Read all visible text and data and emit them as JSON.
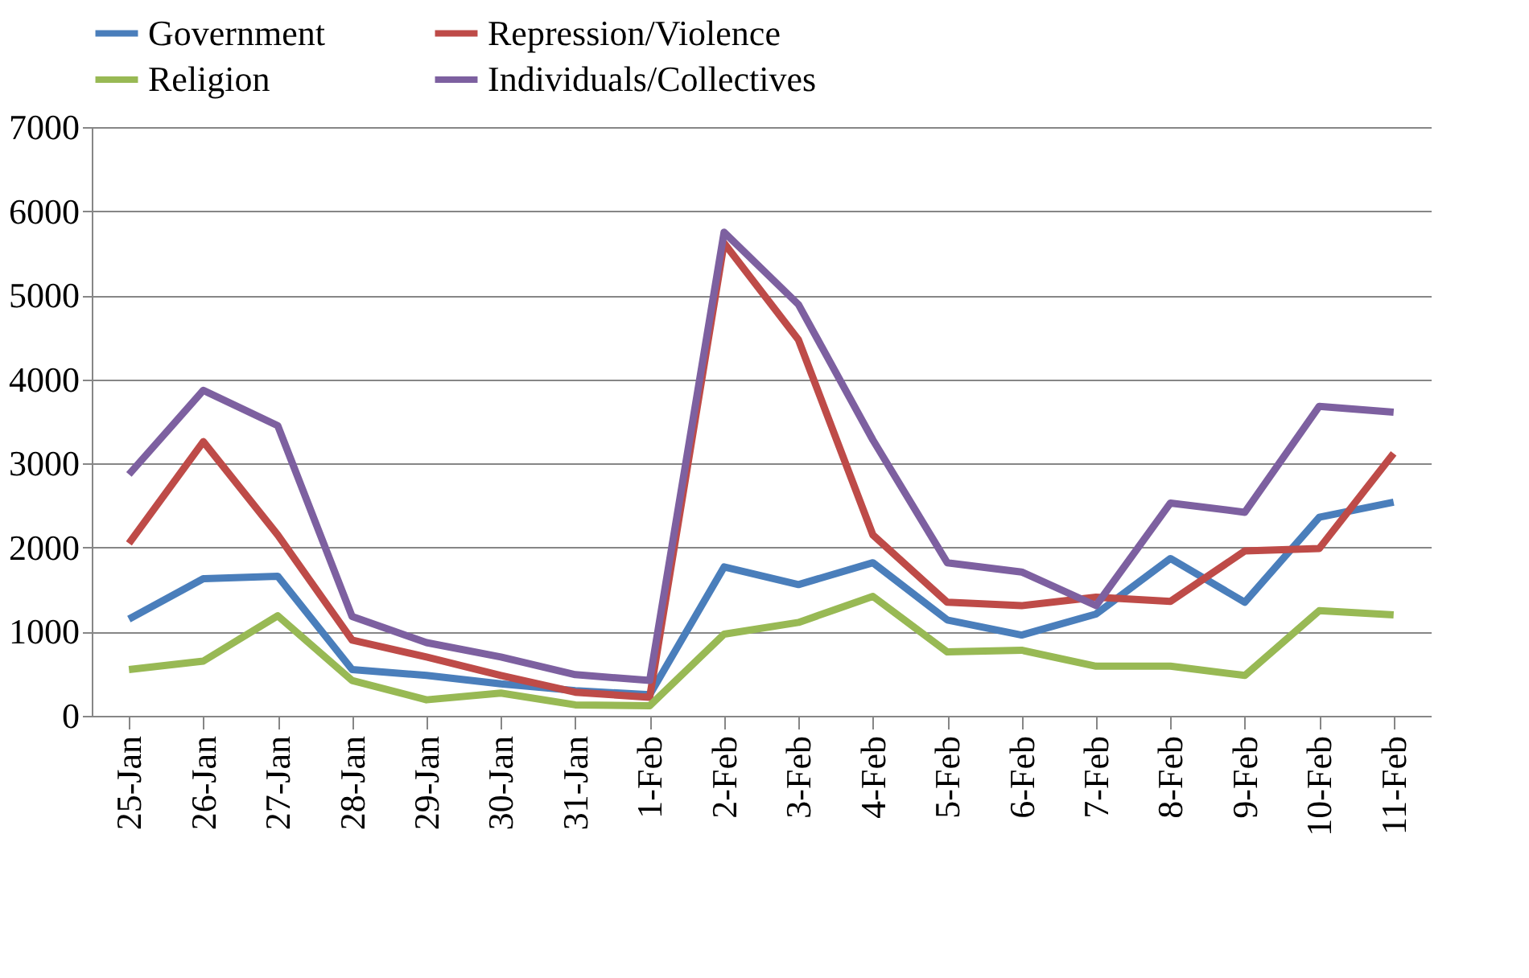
{
  "chart_data": {
    "type": "line",
    "categories": [
      "25-Jan",
      "26-Jan",
      "27-Jan",
      "28-Jan",
      "29-Jan",
      "30-Jan",
      "31-Jan",
      "1-Feb",
      "2-Feb",
      "3-Feb",
      "4-Feb",
      "5-Feb",
      "6-Feb",
      "7-Feb",
      "8-Feb",
      "9-Feb",
      "10-Feb",
      "11-Feb"
    ],
    "series": [
      {
        "name": "Government",
        "color": "#4a7ebb",
        "values": [
          1150,
          1630,
          1660,
          550,
          480,
          380,
          300,
          250,
          1770,
          1560,
          1820,
          1140,
          960,
          1210,
          1870,
          1350,
          2360,
          2540
        ]
      },
      {
        "name": "Repression/Violence",
        "color": "#be4b48",
        "values": [
          2050,
          3260,
          2150,
          900,
          700,
          480,
          280,
          220,
          5620,
          4470,
          2150,
          1350,
          1310,
          1410,
          1360,
          1960,
          1990,
          3120
        ]
      },
      {
        "name": "Religion",
        "color": "#98b954",
        "values": [
          550,
          650,
          1190,
          420,
          190,
          270,
          130,
          120,
          970,
          1110,
          1420,
          760,
          780,
          590,
          590,
          480,
          1250,
          1200
        ]
      },
      {
        "name": "Individuals/Collectives",
        "color": "#7d60a0",
        "values": [
          2870,
          3870,
          3450,
          1180,
          870,
          700,
          490,
          420,
          5750,
          4890,
          3280,
          1820,
          1710,
          1310,
          2530,
          2420,
          3680,
          3610
        ]
      }
    ],
    "ylim": [
      0,
      7000
    ],
    "yticks": [
      0,
      1000,
      2000,
      3000,
      4000,
      5000,
      6000,
      7000
    ],
    "grid": "y",
    "legend": "top",
    "marker": "none",
    "line_style": "solid"
  }
}
